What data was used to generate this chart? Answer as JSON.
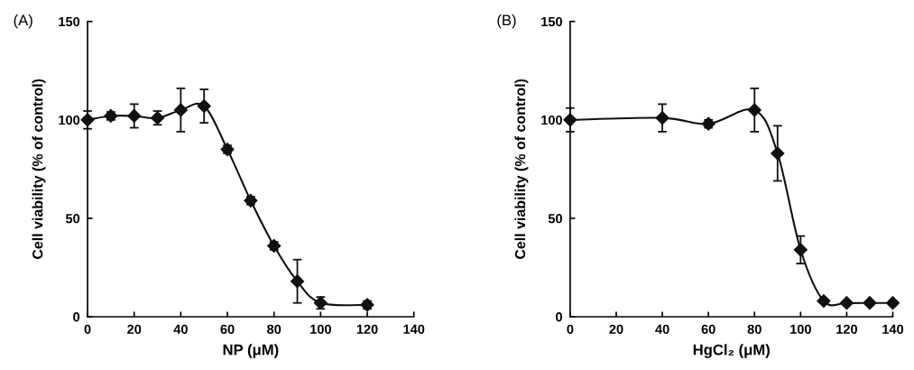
{
  "chart_data": [
    {
      "type": "line",
      "title": "(A)",
      "xlabel": "NP (μM)",
      "ylabel": "Cell viability (% of control)",
      "x": [
        0,
        10,
        20,
        30,
        40,
        50,
        60,
        70,
        80,
        90,
        100,
        120
      ],
      "series": [
        {
          "color": "#111111",
          "values": [
            100,
            102,
            102,
            101,
            105,
            107,
            85,
            59,
            36,
            18,
            7,
            6
          ],
          "errors": [
            4.5,
            2,
            6,
            3.5,
            11,
            8.5,
            2,
            2,
            2,
            11,
            3,
            2
          ]
        }
      ],
      "xlim": [
        0,
        140
      ],
      "ylim": [
        0,
        150
      ],
      "xticks": [
        0,
        20,
        40,
        60,
        80,
        100,
        120,
        140
      ],
      "yticks": [
        0,
        50,
        100,
        150
      ],
      "marker": "diamond",
      "line_style": "solid"
    },
    {
      "type": "line",
      "title": "(B)",
      "xlabel": "HgCl₂ (μM)",
      "ylabel": "Cell viability (% of control)",
      "x": [
        0,
        40,
        60,
        80,
        90,
        100,
        110,
        120,
        130,
        140
      ],
      "series": [
        {
          "color": "#111111",
          "values": [
            100,
            101,
            98,
            105,
            83,
            34,
            8,
            7,
            7,
            7
          ],
          "errors": [
            6,
            7,
            2,
            11,
            14,
            7,
            1,
            1,
            1,
            1
          ]
        }
      ],
      "xlim": [
        0,
        140
      ],
      "ylim": [
        0,
        150
      ],
      "xticks": [
        0,
        20,
        40,
        60,
        80,
        100,
        120,
        140
      ],
      "yticks": [
        0,
        50,
        100,
        150
      ],
      "marker": "diamond",
      "line_style": "solid"
    }
  ]
}
